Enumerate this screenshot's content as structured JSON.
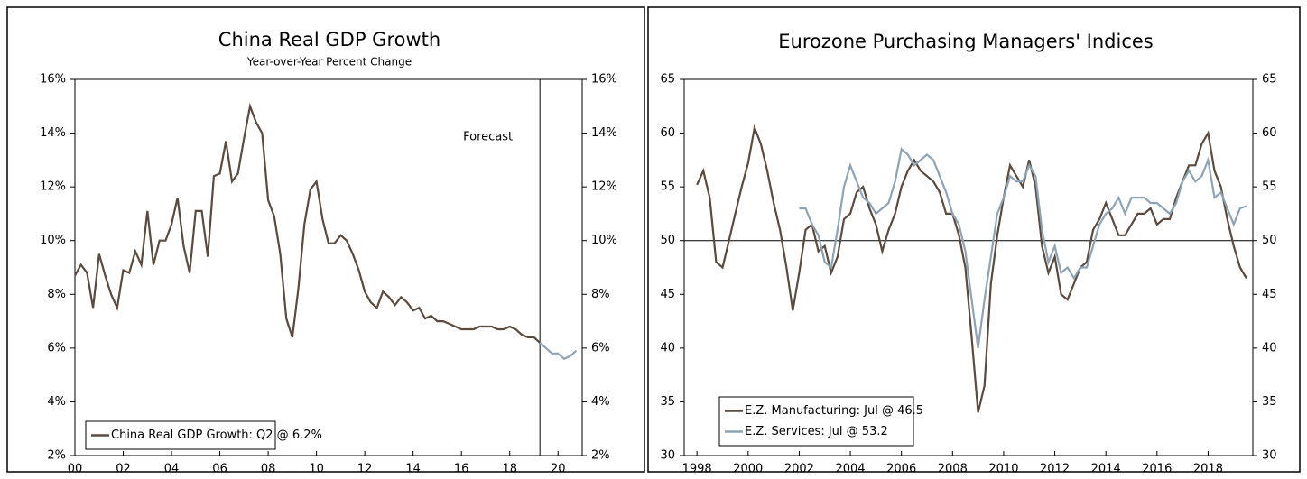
{
  "chart_data": [
    {
      "type": "line",
      "title": "China Real GDP Growth",
      "subtitle": "Year-over-Year Percent Change",
      "annotation": "Forecast",
      "vline": 2019.25,
      "legend": "lower left",
      "mirror_y": true,
      "xlim": [
        2000,
        2021
      ],
      "ylim": [
        2,
        16
      ],
      "xticks": [
        {
          "value": 2000,
          "label": "00"
        },
        {
          "value": 2002,
          "label": "02"
        },
        {
          "value": 2004,
          "label": "04"
        },
        {
          "value": 2006,
          "label": "06"
        },
        {
          "value": 2008,
          "label": "08"
        },
        {
          "value": 2010,
          "label": "10"
        },
        {
          "value": 2012,
          "label": "12"
        },
        {
          "value": 2014,
          "label": "14"
        },
        {
          "value": 2016,
          "label": "16"
        },
        {
          "value": 2018,
          "label": "18"
        },
        {
          "value": 2020,
          "label": "20"
        }
      ],
      "yticks": [
        {
          "value": 16,
          "label": "16%"
        },
        {
          "value": 14,
          "label": "14%"
        },
        {
          "value": 12,
          "label": "12%"
        },
        {
          "value": 10,
          "label": "10%"
        },
        {
          "value": 8,
          "label": "8%"
        },
        {
          "value": 6,
          "label": "6%"
        },
        {
          "value": 4,
          "label": "4%"
        },
        {
          "value": 2,
          "label": "2%"
        }
      ],
      "x": [
        2000,
        2000.25,
        2000.5,
        2000.75,
        2001,
        2001.25,
        2001.5,
        2001.75,
        2002,
        2002.25,
        2002.5,
        2002.75,
        2003,
        2003.25,
        2003.5,
        2003.75,
        2004,
        2004.25,
        2004.5,
        2004.75,
        2005,
        2005.25,
        2005.5,
        2005.75,
        2006,
        2006.25,
        2006.5,
        2006.75,
        2007,
        2007.25,
        2007.5,
        2007.75,
        2008,
        2008.25,
        2008.5,
        2008.75,
        2009,
        2009.25,
        2009.5,
        2009.75,
        2010,
        2010.25,
        2010.5,
        2010.75,
        2011,
        2011.25,
        2011.5,
        2011.75,
        2012,
        2012.25,
        2012.5,
        2012.75,
        2013,
        2013.25,
        2013.5,
        2013.75,
        2014,
        2014.25,
        2014.5,
        2014.75,
        2015,
        2015.25,
        2015.5,
        2015.75,
        2016,
        2016.25,
        2016.5,
        2016.75,
        2017,
        2017.25,
        2017.5,
        2017.75,
        2018,
        2018.25,
        2018.5,
        2018.75,
        2019,
        2019.25,
        2019.5,
        2019.75,
        2020,
        2020.25,
        2020.5,
        2020.75
      ],
      "series": [
        {
          "name": "China Real GDP Growth: Q2 @ 6.2%",
          "color": "#5b4a3d",
          "values": [
            8.7,
            9.1,
            8.8,
            7.5,
            9.5,
            8.7,
            8.0,
            7.5,
            8.9,
            8.8,
            9.6,
            9.1,
            11.1,
            9.1,
            10.0,
            10.0,
            10.6,
            11.6,
            9.8,
            8.8,
            11.1,
            11.1,
            9.4,
            12.4,
            12.5,
            13.7,
            12.2,
            12.5,
            13.8,
            15.0,
            14.4,
            14.0,
            11.5,
            10.9,
            9.5,
            7.1,
            6.4,
            8.2,
            10.6,
            11.9,
            12.2,
            10.8,
            9.9,
            9.9,
            10.2,
            10.0,
            9.5,
            8.9,
            8.1,
            7.7,
            7.5,
            8.1,
            7.9,
            7.6,
            7.9,
            7.7,
            7.4,
            7.5,
            7.1,
            7.2,
            7.0,
            7.0,
            6.9,
            6.8,
            6.7,
            6.7,
            6.7,
            6.8,
            6.8,
            6.8,
            6.7,
            6.7,
            6.8,
            6.7,
            6.5,
            6.4,
            6.4,
            6.2,
            null,
            null,
            null,
            null,
            null,
            null
          ]
        },
        {
          "color": "#8ea4b5",
          "values": [
            null,
            null,
            null,
            null,
            null,
            null,
            null,
            null,
            null,
            null,
            null,
            null,
            null,
            null,
            null,
            null,
            null,
            null,
            null,
            null,
            null,
            null,
            null,
            null,
            null,
            null,
            null,
            null,
            null,
            null,
            null,
            null,
            null,
            null,
            null,
            null,
            null,
            null,
            null,
            null,
            null,
            null,
            null,
            null,
            null,
            null,
            null,
            null,
            null,
            null,
            null,
            null,
            null,
            null,
            null,
            null,
            null,
            null,
            null,
            null,
            null,
            null,
            null,
            null,
            null,
            null,
            null,
            null,
            null,
            null,
            null,
            null,
            null,
            null,
            null,
            null,
            null,
            6.2,
            6.0,
            5.8,
            5.8,
            5.6,
            5.7,
            5.9
          ]
        }
      ]
    },
    {
      "type": "line",
      "title": "Eurozone Purchasing Managers' Indices",
      "hline": 50,
      "legend": "lower left",
      "mirror_y": true,
      "xlim": [
        1997.5,
        2019.75
      ],
      "ylim": [
        30,
        65
      ],
      "xticks": [
        1998,
        2000,
        2002,
        2004,
        2006,
        2008,
        2010,
        2012,
        2014,
        2016,
        2018
      ],
      "yticks": [
        65,
        60,
        55,
        50,
        45,
        40,
        35,
        30
      ],
      "x": [
        1998,
        1998.25,
        1998.5,
        1998.75,
        1999,
        1999.25,
        1999.5,
        1999.75,
        2000,
        2000.25,
        2000.5,
        2000.75,
        2001,
        2001.25,
        2001.5,
        2001.75,
        2002,
        2002.25,
        2002.5,
        2002.75,
        2003,
        2003.25,
        2003.5,
        2003.75,
        2004,
        2004.25,
        2004.5,
        2004.75,
        2005,
        2005.25,
        2005.5,
        2005.75,
        2006,
        2006.25,
        2006.5,
        2006.75,
        2007,
        2007.25,
        2007.5,
        2007.75,
        2008,
        2008.25,
        2008.5,
        2008.75,
        2009,
        2009.25,
        2009.5,
        2009.75,
        2010,
        2010.25,
        2010.5,
        2010.75,
        2011,
        2011.25,
        2011.5,
        2011.75,
        2012,
        2012.25,
        2012.5,
        2012.75,
        2013,
        2013.25,
        2013.5,
        2013.75,
        2014,
        2014.25,
        2014.5,
        2014.75,
        2015,
        2015.25,
        2015.5,
        2015.75,
        2016,
        2016.25,
        2016.5,
        2016.75,
        2017,
        2017.25,
        2017.5,
        2017.75,
        2018,
        2018.25,
        2018.5,
        2018.75,
        2019,
        2019.25,
        2019.5
      ],
      "series": [
        {
          "name": "E.Z. Manufacturing: Jul @ 46.5",
          "color": "#5b4a3d",
          "values": [
            55.2,
            56.5,
            54.0,
            48.0,
            47.5,
            50.0,
            52.5,
            55.0,
            57.2,
            60.5,
            59.0,
            56.5,
            53.5,
            51.0,
            47.5,
            43.5,
            47.0,
            51.0,
            51.5,
            49.0,
            49.5,
            47.0,
            48.5,
            52.0,
            52.5,
            54.5,
            55.0,
            53.0,
            51.5,
            49.0,
            51.0,
            52.5,
            55.0,
            56.5,
            57.5,
            56.5,
            56.0,
            55.5,
            54.5,
            52.5,
            52.5,
            50.5,
            47.5,
            41.0,
            34.0,
            36.5,
            46.0,
            50.5,
            54.0,
            57.0,
            56.0,
            55.0,
            57.5,
            55.0,
            49.5,
            47.0,
            48.5,
            45.0,
            44.5,
            46.0,
            47.5,
            48.0,
            51.0,
            52.0,
            53.5,
            52.0,
            50.5,
            50.5,
            51.5,
            52.5,
            52.5,
            53.0,
            51.5,
            52.0,
            52.0,
            54.0,
            55.5,
            57.0,
            57.0,
            59.0,
            60.0,
            56.5,
            55.0,
            52.0,
            49.5,
            47.5,
            46.5
          ]
        },
        {
          "name": "E.Z. Services: Jul @ 53.2",
          "color": "#8ea4b5",
          "values": [
            null,
            null,
            null,
            null,
            null,
            null,
            null,
            null,
            null,
            null,
            null,
            null,
            null,
            null,
            null,
            null,
            53.0,
            53.0,
            51.5,
            50.5,
            48.0,
            47.5,
            51.0,
            55.0,
            57.0,
            55.5,
            54.0,
            53.5,
            52.5,
            53.0,
            53.5,
            55.5,
            58.5,
            58.0,
            57.0,
            57.5,
            58.0,
            57.5,
            56.0,
            54.5,
            52.5,
            51.5,
            49.0,
            44.5,
            40.0,
            44.5,
            48.5,
            52.5,
            54.0,
            56.0,
            55.5,
            55.5,
            57.0,
            56.0,
            51.0,
            48.0,
            49.5,
            47.0,
            47.5,
            46.5,
            47.5,
            47.5,
            49.5,
            51.5,
            52.5,
            53.0,
            54.0,
            52.5,
            54.0,
            54.0,
            54.0,
            53.5,
            53.5,
            53.0,
            52.5,
            53.5,
            55.5,
            56.5,
            55.5,
            56.0,
            57.5,
            54.0,
            54.5,
            53.0,
            51.5,
            53.0,
            53.2
          ]
        }
      ]
    }
  ]
}
